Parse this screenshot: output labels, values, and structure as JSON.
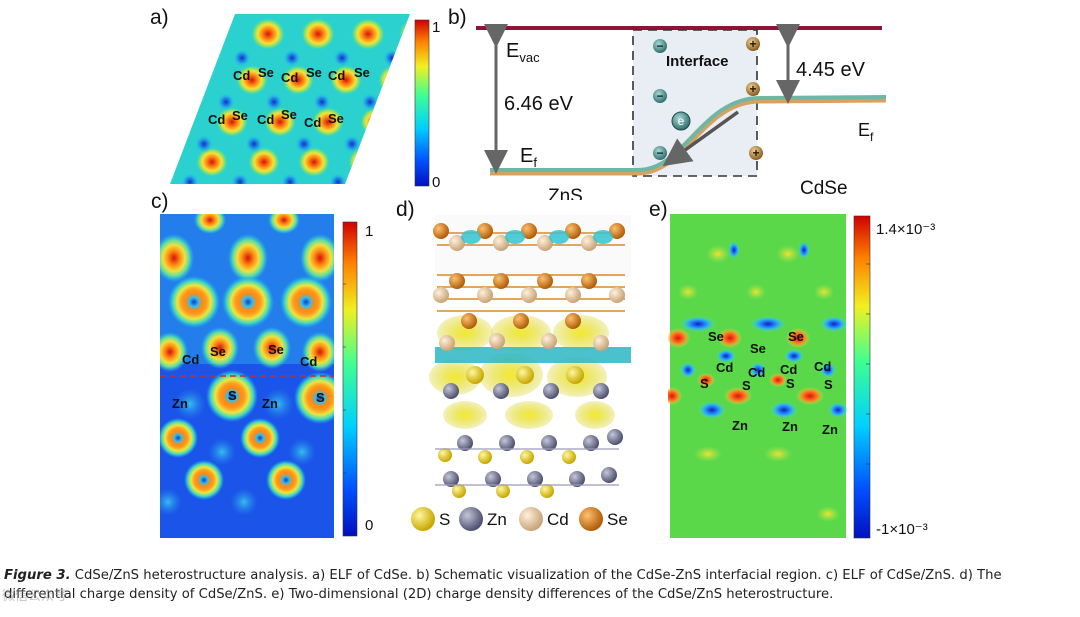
{
  "panel_labels": {
    "a": "a)",
    "b": "b)",
    "c": "c)",
    "d": "d)",
    "e": "e)"
  },
  "colorbar_ab": {
    "max": "1",
    "min": "0"
  },
  "colorbar_c": {
    "max": "1",
    "min": "0"
  },
  "colorbar_e": {
    "max": "1.4×10⁻³",
    "min": "-1×10⁻³"
  },
  "panel_a_atoms": [
    "Cd",
    "Se",
    "Cd",
    "Se",
    "Cd",
    "Se",
    "Cd",
    "Se",
    "Cd",
    "Se",
    "Cd",
    "Se"
  ],
  "panel_b": {
    "evac_main": "E",
    "evac_sub": "vac",
    "gap_left": "6.46 eV",
    "gap_right": "4.45 eV",
    "interface": "Interface",
    "ef_left_main": "E",
    "ef_left_sub": "f",
    "ef_right_main": "E",
    "ef_right_sub": "f",
    "electron": "e",
    "plus": "+",
    "minus": "−",
    "material_left": "ZnS",
    "material_right": "CdSe"
  },
  "panel_c_atoms": {
    "top": [
      "Cd",
      "Se",
      "Se",
      "Cd"
    ],
    "bottom": [
      "Zn",
      "S",
      "Zn",
      "S"
    ]
  },
  "panel_d_legend": [
    {
      "label": "S",
      "color": "#e8d21c"
    },
    {
      "label": "Zn",
      "color": "#7d7f98"
    },
    {
      "label": "Cd",
      "color": "#e8c9a2"
    },
    {
      "label": "Se",
      "color": "#d9801c"
    }
  ],
  "panel_e_atoms": [
    "Se",
    "Se",
    "Se",
    "Cd",
    "Cd",
    "Cd",
    "Cd",
    "S",
    "S",
    "S",
    "S",
    "Zn",
    "Zn",
    "Zn"
  ],
  "caption": {
    "figure_label": "Figure 3.",
    "text": " CdSe/ZnS heterostructure analysis. a) ELF of CdSe. b) Schematic visualization of the CdSe-ZnS interfacial region. c) ELF of CdSe/ZnS. d) The differential charge density of CdSe/ZnS. e) Two-dimensional (2D) charge density differences of the CdSe/ZnS heterostructure."
  },
  "watermark": "微信公众号"
}
